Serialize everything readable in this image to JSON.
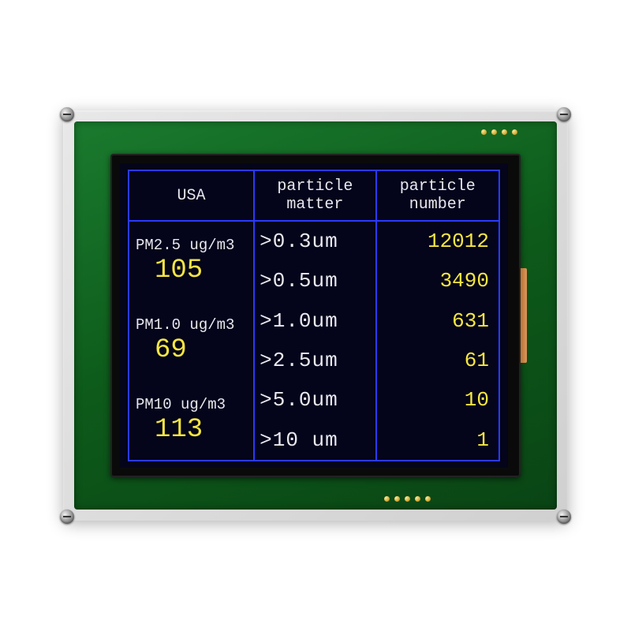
{
  "colors": {
    "border": "#2a3aff",
    "header_text": "#e8e8f0",
    "value_yellow": "#f5e642",
    "lcd_bg": "#04041a"
  },
  "headers": {
    "usa": "USA",
    "matter": "particle\nmatter",
    "number": "particle\nnumber"
  },
  "pm": [
    {
      "label": "PM2.5 ug/m3",
      "value": "105"
    },
    {
      "label": "PM1.0 ug/m3",
      "value": "69"
    },
    {
      "label": "PM10  ug/m3",
      "value": "113"
    }
  ],
  "particles": [
    {
      "size": ">0.3um",
      "count": "12012"
    },
    {
      "size": ">0.5um",
      "count": "3490"
    },
    {
      "size": ">1.0um",
      "count": "631"
    },
    {
      "size": ">2.5um",
      "count": "61"
    },
    {
      "size": ">5.0um",
      "count": "10"
    },
    {
      "size": ">10 um",
      "count": "1"
    }
  ]
}
